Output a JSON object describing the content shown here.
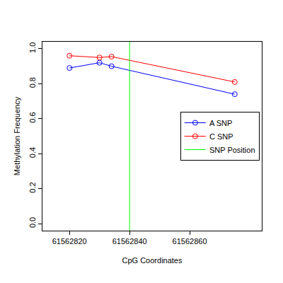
{
  "chart_data": {
    "type": "line",
    "x_label": "CpG Coordinates",
    "y_label": "Methylation Frequency",
    "x": [
      61562820,
      61562830,
      61562834,
      61562875
    ],
    "series": [
      {
        "name": "A SNP",
        "color": "#0000ff",
        "values": [
          0.89,
          0.92,
          0.9,
          0.74
        ],
        "marker": "circle-open",
        "line_style": "solid"
      },
      {
        "name": "C SNP",
        "color": "#ff0000",
        "values": [
          0.96,
          0.95,
          0.955,
          0.81
        ],
        "marker": "circle-open",
        "line_style": "solid"
      }
    ],
    "snp_position": {
      "name": "SNP Position",
      "color": "#00ff00",
      "x": 61562840
    },
    "xlim": [
      61562811,
      61562884
    ],
    "xticks": [
      61562820,
      61562840,
      61562860
    ],
    "ylim": [
      -0.04,
      1.04
    ],
    "yticks": [
      0,
      0.2,
      0.4,
      0.6,
      0.8,
      1
    ],
    "ytick_labels": [
      "0.0",
      "0.2",
      "0.4",
      "0.6",
      "0.8",
      "1.0"
    ],
    "grid": false,
    "legend": "right"
  }
}
